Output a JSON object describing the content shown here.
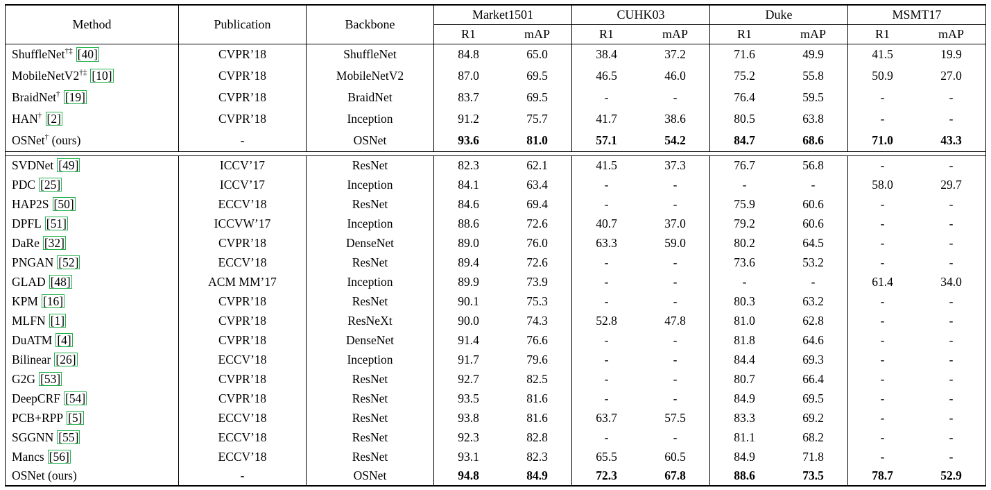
{
  "table": {
    "header": {
      "method": "Method",
      "publication": "Publication",
      "backbone": "Backbone",
      "datasets": [
        "Market1501",
        "CUHK03",
        "Duke",
        "MSMT17"
      ],
      "subcols": [
        "R1",
        "mAP"
      ]
    },
    "colors": {
      "citation_border": "#22B14C",
      "rule": "#000000",
      "text": "#000000"
    },
    "groups": [
      {
        "rows": [
          {
            "name": "ShuffleNet",
            "sup": "†‡",
            "cite": "[40]",
            "publication": "CVPR’18",
            "backbone": "ShuffleNet",
            "values": [
              "84.8",
              "65.0",
              "38.4",
              "37.2",
              "71.6",
              "49.9",
              "41.5",
              "19.9"
            ],
            "bold": false
          },
          {
            "name": "MobileNetV2",
            "sup": "†‡",
            "cite": "[10]",
            "publication": "CVPR’18",
            "backbone": "MobileNetV2",
            "values": [
              "87.0",
              "69.5",
              "46.5",
              "46.0",
              "75.2",
              "55.8",
              "50.9",
              "27.0"
            ],
            "bold": false
          },
          {
            "name": "BraidNet",
            "sup": "†",
            "cite": "[19]",
            "publication": "CVPR’18",
            "backbone": "BraidNet",
            "values": [
              "83.7",
              "69.5",
              "-",
              "-",
              "76.4",
              "59.5",
              "-",
              "-"
            ],
            "bold": false
          },
          {
            "name": "HAN",
            "sup": "†",
            "cite": "[2]",
            "publication": "CVPR’18",
            "backbone": "Inception",
            "values": [
              "91.2",
              "75.7",
              "41.7",
              "38.6",
              "80.5",
              "63.8",
              "-",
              "-"
            ],
            "bold": false
          },
          {
            "name": "OSNet",
            "sup": "†",
            "suffix": " (ours)",
            "publication": "-",
            "backbone": "OSNet",
            "values": [
              "93.6",
              "81.0",
              "57.1",
              "54.2",
              "84.7",
              "68.6",
              "71.0",
              "43.3"
            ],
            "bold": true
          }
        ]
      },
      {
        "rows": [
          {
            "name": "SVDNet",
            "cite": "[49]",
            "publication": "ICCV’17",
            "backbone": "ResNet",
            "values": [
              "82.3",
              "62.1",
              "41.5",
              "37.3",
              "76.7",
              "56.8",
              "-",
              "-"
            ],
            "bold": false
          },
          {
            "name": "PDC",
            "cite": "[25]",
            "publication": "ICCV’17",
            "backbone": "Inception",
            "values": [
              "84.1",
              "63.4",
              "-",
              "-",
              "-",
              "-",
              "58.0",
              "29.7"
            ],
            "bold": false
          },
          {
            "name": "HAP2S",
            "cite": "[50]",
            "publication": "ECCV’18",
            "backbone": "ResNet",
            "values": [
              "84.6",
              "69.4",
              "-",
              "-",
              "75.9",
              "60.6",
              "-",
              "-"
            ],
            "bold": false
          },
          {
            "name": "DPFL",
            "cite": "[51]",
            "publication": "ICCVW’17",
            "backbone": "Inception",
            "values": [
              "88.6",
              "72.6",
              "40.7",
              "37.0",
              "79.2",
              "60.6",
              "-",
              "-"
            ],
            "bold": false
          },
          {
            "name": "DaRe",
            "cite": "[32]",
            "publication": "CVPR’18",
            "backbone": "DenseNet",
            "values": [
              "89.0",
              "76.0",
              "63.3",
              "59.0",
              "80.2",
              "64.5",
              "-",
              "-"
            ],
            "bold": false
          },
          {
            "name": "PNGAN",
            "cite": "[52]",
            "publication": "ECCV’18",
            "backbone": "ResNet",
            "values": [
              "89.4",
              "72.6",
              "-",
              "-",
              "73.6",
              "53.2",
              "-",
              "-"
            ],
            "bold": false
          },
          {
            "name": "GLAD",
            "cite": "[48]",
            "publication": "ACM MM’17",
            "backbone": "Inception",
            "values": [
              "89.9",
              "73.9",
              "-",
              "-",
              "-",
              "-",
              "61.4",
              "34.0"
            ],
            "bold": false
          },
          {
            "name": "KPM",
            "cite": "[16]",
            "publication": "CVPR’18",
            "backbone": "ResNet",
            "values": [
              "90.1",
              "75.3",
              "-",
              "-",
              "80.3",
              "63.2",
              "-",
              "-"
            ],
            "bold": false
          },
          {
            "name": "MLFN",
            "cite": "[1]",
            "publication": "CVPR’18",
            "backbone": "ResNeXt",
            "values": [
              "90.0",
              "74.3",
              "52.8",
              "47.8",
              "81.0",
              "62.8",
              "-",
              "-"
            ],
            "bold": false
          },
          {
            "name": "DuATM",
            "cite": "[4]",
            "publication": "CVPR’18",
            "backbone": "DenseNet",
            "values": [
              "91.4",
              "76.6",
              "-",
              "-",
              "81.8",
              "64.6",
              "-",
              "-"
            ],
            "bold": false
          },
          {
            "name": "Bilinear",
            "cite": "[26]",
            "publication": "ECCV’18",
            "backbone": "Inception",
            "values": [
              "91.7",
              "79.6",
              "-",
              "-",
              "84.4",
              "69.3",
              "-",
              "-"
            ],
            "bold": false
          },
          {
            "name": "G2G",
            "cite": "[53]",
            "publication": "CVPR’18",
            "backbone": "ResNet",
            "values": [
              "92.7",
              "82.5",
              "-",
              "-",
              "80.7",
              "66.4",
              "-",
              "-"
            ],
            "bold": false
          },
          {
            "name": "DeepCRF",
            "cite": "[54]",
            "publication": "CVPR’18",
            "backbone": "ResNet",
            "values": [
              "93.5",
              "81.6",
              "-",
              "-",
              "84.9",
              "69.5",
              "-",
              "-"
            ],
            "bold": false
          },
          {
            "name": "PCB+RPP",
            "cite": "[5]",
            "publication": "ECCV’18",
            "backbone": "ResNet",
            "values": [
              "93.8",
              "81.6",
              "63.7",
              "57.5",
              "83.3",
              "69.2",
              "-",
              "-"
            ],
            "bold": false
          },
          {
            "name": "SGGNN",
            "cite": "[55]",
            "publication": "ECCV’18",
            "backbone": "ResNet",
            "values": [
              "92.3",
              "82.8",
              "-",
              "-",
              "81.1",
              "68.2",
              "-",
              "-"
            ],
            "bold": false
          },
          {
            "name": "Mancs",
            "cite": "[56]",
            "publication": "ECCV’18",
            "backbone": "ResNet",
            "values": [
              "93.1",
              "82.3",
              "65.5",
              "60.5",
              "84.9",
              "71.8",
              "-",
              "-"
            ],
            "bold": false
          },
          {
            "name": "OSNet",
            "suffix": " (ours)",
            "publication": "-",
            "backbone": "OSNet",
            "values": [
              "94.8",
              "84.9",
              "72.3",
              "67.8",
              "88.6",
              "73.5",
              "78.7",
              "52.9"
            ],
            "bold": true
          }
        ]
      }
    ]
  }
}
